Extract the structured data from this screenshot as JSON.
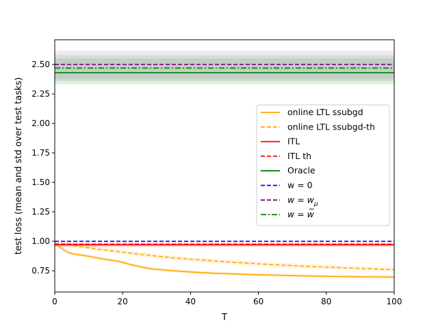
{
  "chart_data": {
    "type": "line",
    "title": "",
    "xlabel": "T",
    "ylabel": "test loss (mean and std over test tasks)",
    "xlim": [
      0,
      100
    ],
    "ylim": [
      0.57,
      2.71
    ],
    "xticks": [
      0,
      20,
      40,
      60,
      80,
      100
    ],
    "xtick_labels": [
      "0",
      "20",
      "40",
      "60",
      "80",
      "100"
    ],
    "yticks": [
      0.75,
      1.0,
      1.25,
      1.5,
      1.75,
      2.0,
      2.25,
      2.5
    ],
    "ytick_labels": [
      "0.75",
      "1.00",
      "1.25",
      "1.50",
      "1.75",
      "2.00",
      "2.25",
      "2.50"
    ],
    "grid": false,
    "legend_position": "center-right",
    "bands": [
      {
        "series": "Oracle",
        "lower": 2.33,
        "upper": 2.55,
        "color": "#2ca02c",
        "opacity": 0.15
      },
      {
        "series": "w = w_mu",
        "lower": 2.38,
        "upper": 2.62,
        "color": "#7f5a9f",
        "opacity": 0.12
      },
      {
        "series": "w = w_bar",
        "lower": 2.36,
        "upper": 2.58,
        "color": "#446644",
        "opacity": 0.12
      },
      {
        "series": "ITL",
        "lower": 0.95,
        "upper": 0.99,
        "color": "#ff6666",
        "opacity": 0.25
      },
      {
        "series": "online LTL ssubgd",
        "lower_offset": -0.015,
        "upper_offset": 0.015,
        "color": "#ffa500",
        "opacity": 0.15
      },
      {
        "series": "online LTL ssubgd-th",
        "lower_offset": -0.02,
        "upper_offset": 0.02,
        "color": "#ffa500",
        "opacity": 0.12
      }
    ],
    "series": [
      {
        "name": "online LTL ssubgd",
        "color": "#ffa500",
        "dash": "solid",
        "x": [
          0,
          2,
          4,
          6,
          8,
          10,
          12,
          14,
          16,
          18,
          20,
          22,
          24,
          26,
          28,
          30,
          35,
          40,
          45,
          50,
          55,
          60,
          65,
          70,
          75,
          80,
          85,
          90,
          95,
          100
        ],
        "y": [
          0.98,
          0.94,
          0.905,
          0.89,
          0.882,
          0.873,
          0.863,
          0.851,
          0.842,
          0.834,
          0.822,
          0.805,
          0.792,
          0.779,
          0.769,
          0.762,
          0.75,
          0.74,
          0.732,
          0.726,
          0.721,
          0.716,
          0.713,
          0.709,
          0.706,
          0.703,
          0.701,
          0.699,
          0.698,
          0.697
        ]
      },
      {
        "name": "online LTL ssubgd-th",
        "color": "#ffa500",
        "dash": "dashed",
        "x": [
          0,
          2,
          4,
          6,
          8,
          10,
          12,
          14,
          16,
          18,
          20,
          25,
          30,
          35,
          40,
          45,
          50,
          55,
          60,
          65,
          70,
          75,
          80,
          85,
          90,
          95,
          100
        ],
        "y": [
          0.98,
          0.975,
          0.97,
          0.962,
          0.953,
          0.945,
          0.936,
          0.928,
          0.922,
          0.915,
          0.908,
          0.89,
          0.874,
          0.859,
          0.848,
          0.838,
          0.827,
          0.818,
          0.809,
          0.801,
          0.794,
          0.787,
          0.781,
          0.775,
          0.77,
          0.765,
          0.76
        ]
      },
      {
        "name": "ITL",
        "color": "#ff0000",
        "dash": "solid",
        "x": [
          0,
          100
        ],
        "y": [
          0.97,
          0.97
        ]
      },
      {
        "name": "ITL th",
        "color": "#ff0000",
        "dash": "dashed",
        "x": [
          0,
          100
        ],
        "y": [
          0.975,
          0.975
        ]
      },
      {
        "name": "Oracle",
        "color": "#008000",
        "dash": "solid",
        "x": [
          0,
          100
        ],
        "y": [
          2.43,
          2.43
        ]
      },
      {
        "name": "w = 0",
        "color": "#0000ff",
        "dash": "dashed",
        "x": [
          0,
          100
        ],
        "y": [
          1.0,
          1.0
        ]
      },
      {
        "name": "w = w_mu",
        "color": "#800080",
        "dash": "dashed",
        "x": [
          0,
          100
        ],
        "y": [
          2.5,
          2.5
        ]
      },
      {
        "name": "w = w_bar",
        "color": "#008000",
        "dash": "dashdot",
        "x": [
          0,
          100
        ],
        "y": [
          2.47,
          2.47
        ]
      }
    ],
    "legend": [
      {
        "label": "online LTL ssubgd",
        "color": "#ffa500",
        "dash": "solid",
        "math": false
      },
      {
        "label": "online LTL ssubgd-th",
        "color": "#ffa500",
        "dash": "dashed",
        "math": false
      },
      {
        "label": "ITL",
        "color": "#ff0000",
        "dash": "solid",
        "math": false
      },
      {
        "label": "ITL th",
        "color": "#ff0000",
        "dash": "dashed",
        "math": false
      },
      {
        "label": "Oracle",
        "color": "#008000",
        "dash": "solid",
        "math": false
      },
      {
        "label": "w = 0",
        "color": "#0000ff",
        "dash": "dashed",
        "math": false
      },
      {
        "label": "w = w_μ",
        "color": "#800080",
        "dash": "dashed",
        "math": true,
        "base": "w = w",
        "sub": "μ",
        "over": ""
      },
      {
        "label": "w = w̄",
        "color": "#008000",
        "dash": "dashdot",
        "math": true,
        "base": "w = ",
        "sub": "",
        "over": "w"
      }
    ]
  }
}
